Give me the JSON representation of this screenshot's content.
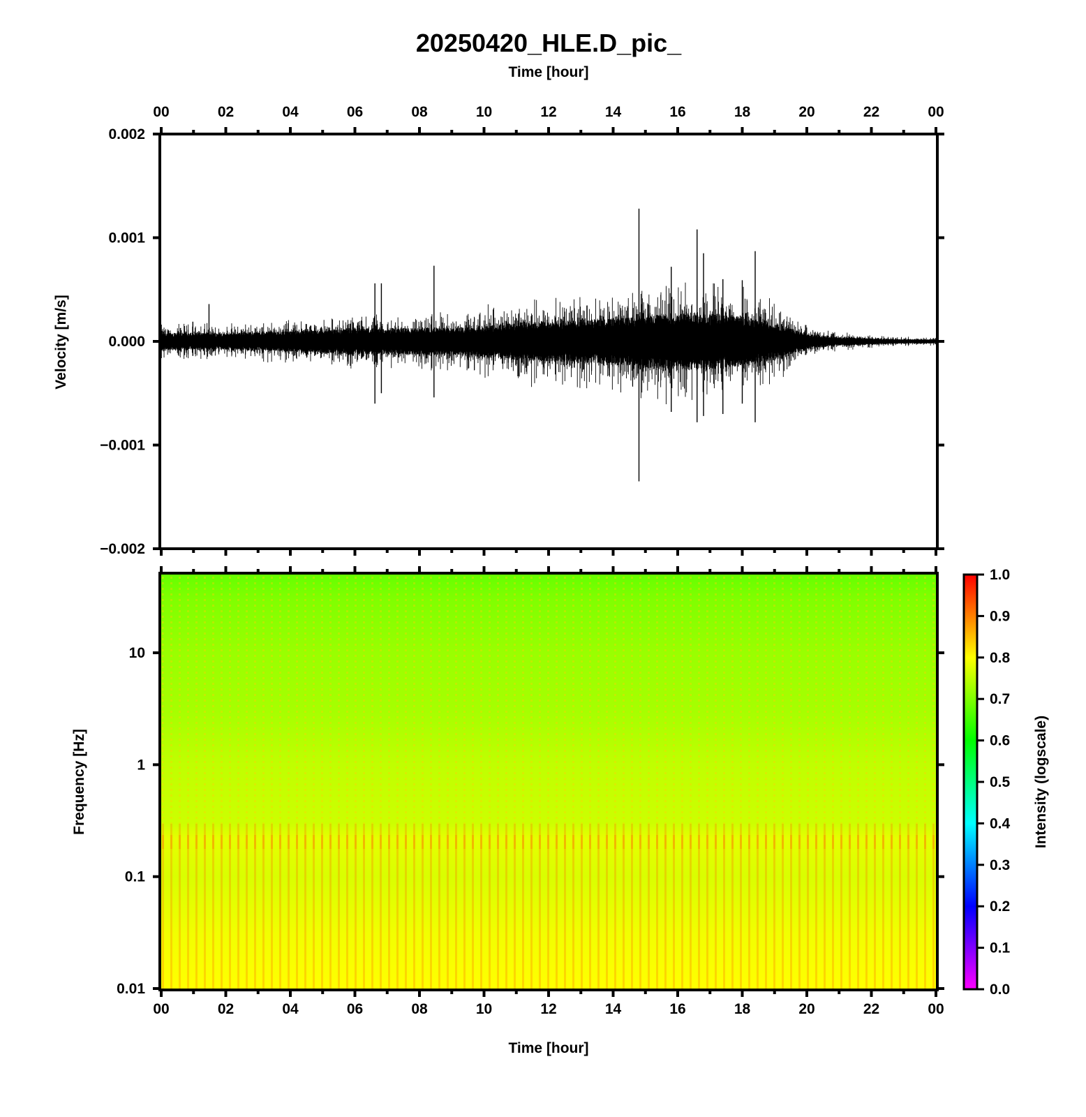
{
  "title": "20250420_HLE.D_pic_",
  "colors": {
    "frame": "#000000",
    "waveform": "#000000",
    "colormap": [
      "#ff00ff",
      "#8000ff",
      "#0000ff",
      "#0080ff",
      "#00ffff",
      "#00ff80",
      "#00ff00",
      "#80ff00",
      "#ffff00",
      "#ff8000",
      "#ff0000"
    ]
  },
  "chart_data": [
    {
      "type": "line",
      "name": "waveform",
      "top_axis_label": "Time [hour]",
      "ylabel": "Velocity [m/s]",
      "x_tick_labels": [
        "00",
        "02",
        "04",
        "06",
        "08",
        "10",
        "12",
        "14",
        "16",
        "18",
        "20",
        "22",
        "00"
      ],
      "xlim": [
        0,
        24
      ],
      "ylim": [
        -0.002,
        0.002
      ],
      "y_ticks": [
        0.002,
        0.001,
        0.0,
        -0.001,
        -0.002
      ],
      "y_tick_labels": [
        "0.002",
        "0.001",
        "0.000",
        "−0.001",
        "−0.002"
      ],
      "envelope": {
        "x": [
          0,
          1,
          2,
          3,
          4,
          5,
          6,
          7,
          8,
          9,
          10,
          11,
          12,
          13,
          14,
          15,
          16,
          17,
          18,
          19,
          20,
          21,
          22,
          23,
          24
        ],
        "amplitude": [
          8e-05,
          8e-05,
          8e-05,
          9e-05,
          0.0001,
          0.00011,
          0.00012,
          0.00012,
          0.00013,
          0.00013,
          0.00015,
          0.00018,
          0.00019,
          0.0002,
          0.00022,
          0.00025,
          0.00028,
          0.00027,
          0.00024,
          0.00018,
          7e-05,
          4e-05,
          3e-05,
          2e-05,
          2e-05
        ]
      },
      "spikes": [
        {
          "x": 0.98,
          "ymax": 0.00019,
          "ymin": -0.00014
        },
        {
          "x": 1.48,
          "ymax": 0.00036,
          "ymin": -6e-05
        },
        {
          "x": 6.62,
          "ymax": 0.00056,
          "ymin": -0.0006
        },
        {
          "x": 6.82,
          "ymax": 0.00056,
          "ymin": -0.0005
        },
        {
          "x": 8.45,
          "ymax": 0.00073,
          "ymin": -0.00054
        },
        {
          "x": 14.8,
          "ymax": 0.00128,
          "ymin": -0.00135
        },
        {
          "x": 15.8,
          "ymax": 0.00072,
          "ymin": -0.00068
        },
        {
          "x": 16.6,
          "ymax": 0.00108,
          "ymin": -0.00078
        },
        {
          "x": 16.8,
          "ymax": 0.00085,
          "ymin": -0.00072
        },
        {
          "x": 17.4,
          "ymax": 0.0006,
          "ymin": -0.0007
        },
        {
          "x": 18.4,
          "ymax": 0.00087,
          "ymin": -0.00078
        },
        {
          "x": 18.0,
          "ymax": 0.00059,
          "ymin": -0.0006
        }
      ]
    },
    {
      "type": "heatmap",
      "name": "spectrogram",
      "xlabel": "Time [hour]",
      "ylabel": "Frequency [Hz]",
      "x_tick_labels": [
        "00",
        "02",
        "04",
        "06",
        "08",
        "10",
        "12",
        "14",
        "16",
        "18",
        "20",
        "22",
        "00"
      ],
      "xlim": [
        0,
        24
      ],
      "ylim": [
        0.01,
        50
      ],
      "y_scale": "log",
      "y_ticks": [
        10,
        1,
        0.1,
        0.01
      ],
      "y_tick_labels": [
        "10",
        "1",
        "0.1",
        "0.01"
      ],
      "intensity_profile": {
        "frequency": [
          0.01,
          0.03,
          0.1,
          0.22,
          0.3,
          1,
          3,
          10,
          30,
          50
        ],
        "intensity": [
          0.8,
          0.79,
          0.77,
          0.78,
          0.76,
          0.75,
          0.73,
          0.72,
          0.7,
          0.68
        ]
      },
      "colorbar": {
        "label": "Intensity (logscale)",
        "range": [
          0,
          1
        ],
        "ticks": [
          1.0,
          0.9,
          0.8,
          0.7,
          0.6,
          0.5,
          0.4,
          0.3,
          0.2,
          0.1,
          0.0
        ],
        "tick_labels": [
          "1.0",
          "0.9",
          "0.8",
          "0.7",
          "0.6",
          "0.5",
          "0.4",
          "0.3",
          "0.2",
          "0.1",
          "0.0"
        ]
      }
    }
  ]
}
